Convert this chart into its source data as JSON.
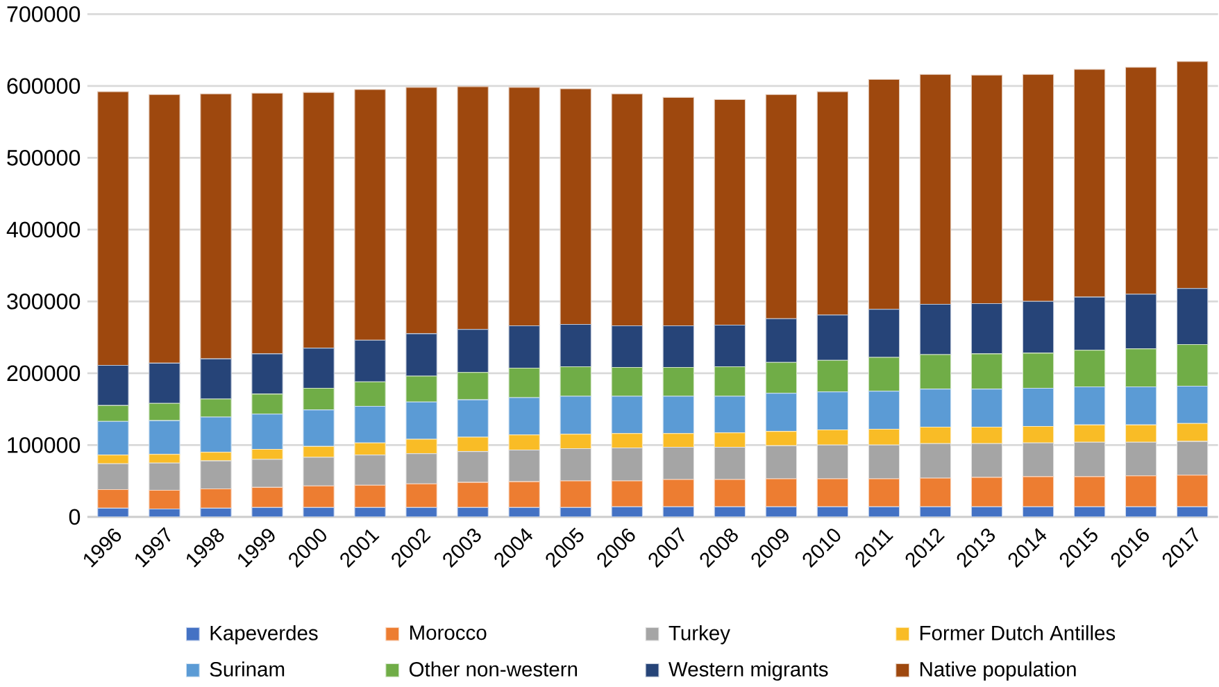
{
  "chart_data": {
    "type": "bar",
    "stacked": true,
    "categories": [
      "1996",
      "1997",
      "1998",
      "1999",
      "2000",
      "2001",
      "2002",
      "2003",
      "2004",
      "2005",
      "2006",
      "2007",
      "2008",
      "2009",
      "2010",
      "2011",
      "2012",
      "2013",
      "2014",
      "2015",
      "2016",
      "2017"
    ],
    "series": [
      {
        "name": "Kapeverdes",
        "color": "#4472c4",
        "values": [
          12000,
          11000,
          12000,
          13000,
          13000,
          13000,
          13000,
          13000,
          13000,
          13000,
          14000,
          14000,
          14000,
          14000,
          14000,
          14000,
          14000,
          14000,
          14000,
          14000,
          14000,
          14000
        ]
      },
      {
        "name": "Morocco",
        "color": "#ed7d31",
        "values": [
          26000,
          26000,
          27000,
          28000,
          30000,
          31000,
          33000,
          35000,
          36000,
          37000,
          36000,
          38000,
          38000,
          39000,
          39000,
          39000,
          40000,
          41000,
          42000,
          42000,
          43000,
          44000
        ]
      },
      {
        "name": "Turkey",
        "color": "#a5a5a5",
        "values": [
          36000,
          38000,
          39000,
          39000,
          40000,
          42000,
          42000,
          43000,
          44000,
          45000,
          46000,
          45000,
          45000,
          46000,
          47000,
          47000,
          48000,
          47000,
          47000,
          48000,
          47000,
          47000
        ]
      },
      {
        "name": "Former Dutch Antilles",
        "color": "#f9bc26",
        "values": [
          12000,
          12000,
          12000,
          14000,
          15000,
          17000,
          20000,
          20000,
          21000,
          20000,
          20000,
          19000,
          20000,
          20000,
          21000,
          22000,
          23000,
          23000,
          23000,
          24000,
          24000,
          25000
        ]
      },
      {
        "name": "Surinam",
        "color": "#5b9bd5",
        "values": [
          47000,
          47000,
          49000,
          49000,
          51000,
          51000,
          52000,
          52000,
          52000,
          53000,
          52000,
          52000,
          51000,
          53000,
          53000,
          53000,
          53000,
          53000,
          53000,
          53000,
          53000,
          52000
        ]
      },
      {
        "name": "Other non-western",
        "color": "#70ad47",
        "values": [
          22000,
          24000,
          25000,
          28000,
          30000,
          34000,
          36000,
          38000,
          41000,
          41000,
          40000,
          40000,
          41000,
          43000,
          44000,
          47000,
          48000,
          49000,
          49000,
          51000,
          53000,
          58000
        ]
      },
      {
        "name": "Western migrants",
        "color": "#264478",
        "values": [
          56000,
          56000,
          56000,
          56000,
          56000,
          58000,
          59000,
          60000,
          59000,
          59000,
          58000,
          58000,
          58000,
          61000,
          63000,
          67000,
          70000,
          70000,
          72000,
          74000,
          76000,
          78000
        ]
      },
      {
        "name": "Native population",
        "color": "#9e480e",
        "values": [
          381000,
          374000,
          369000,
          363000,
          356000,
          349000,
          343000,
          338000,
          332000,
          328000,
          323000,
          318000,
          314000,
          312000,
          311000,
          320000,
          320000,
          318000,
          316000,
          317000,
          316000,
          316000
        ]
      }
    ],
    "ylim": [
      0,
      700000
    ],
    "yticks": [
      0,
      100000,
      200000,
      300000,
      400000,
      500000,
      600000,
      700000
    ],
    "grid": "y",
    "legend": "bottom"
  }
}
